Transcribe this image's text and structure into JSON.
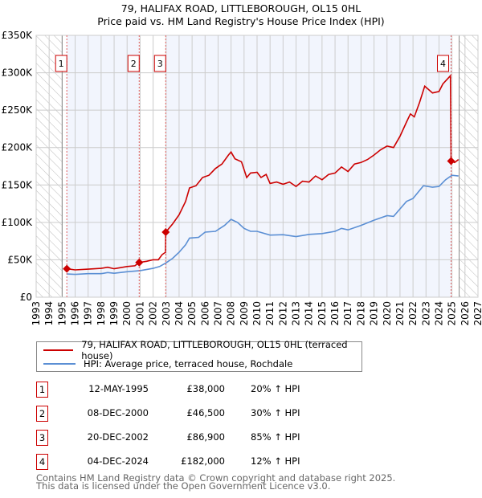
{
  "chart_data": {
    "type": "line",
    "title": "79, HALIFAX ROAD, LITTLEBOROUGH, OL15 0HL",
    "subtitle": "Price paid vs. HM Land Registry's House Price Index (HPI)",
    "xlim": [
      1993,
      2027
    ],
    "ylim": [
      0,
      350000
    ],
    "x_ticks": [
      "1993",
      "1994",
      "1995",
      "1996",
      "1997",
      "1998",
      "1999",
      "2000",
      "2001",
      "2002",
      "2003",
      "2004",
      "2005",
      "2006",
      "2007",
      "2008",
      "2009",
      "2010",
      "2011",
      "2012",
      "2013",
      "2014",
      "2015",
      "2016",
      "2017",
      "2018",
      "2019",
      "2020",
      "2021",
      "2022",
      "2023",
      "2024",
      "2025",
      "2026",
      "2027"
    ],
    "y_ticks": [
      {
        "v": 0,
        "label": "£0"
      },
      {
        "v": 50000,
        "label": "£50K"
      },
      {
        "v": 100000,
        "label": "£100K"
      },
      {
        "v": 150000,
        "label": "£150K"
      },
      {
        "v": 200000,
        "label": "£200K"
      },
      {
        "v": 250000,
        "label": "£250K"
      },
      {
        "v": 300000,
        "label": "£300K"
      },
      {
        "v": 350000,
        "label": "£350K"
      }
    ],
    "grid": true,
    "series": [
      {
        "name": "79, HALIFAX ROAD, LITTLEBOROUGH, OL15 0HL (terraced house)",
        "color": "#cc0000",
        "points": [
          [
            1995.36,
            38000
          ],
          [
            1996,
            36500
          ],
          [
            1997,
            37500
          ],
          [
            1998,
            38500
          ],
          [
            1998.5,
            40000
          ],
          [
            1999,
            38000
          ],
          [
            2000,
            41000
          ],
          [
            2000.6,
            42000
          ],
          [
            2000.93,
            46500
          ],
          [
            2001.5,
            48000
          ],
          [
            2002,
            50000
          ],
          [
            2002.4,
            50000
          ],
          [
            2002.7,
            57000
          ],
          [
            2002.95,
            60000
          ],
          [
            2002.97,
            86900
          ],
          [
            2003.5,
            98000
          ],
          [
            2004,
            110000
          ],
          [
            2004.5,
            128000
          ],
          [
            2004.8,
            146000
          ],
          [
            2005.3,
            149000
          ],
          [
            2005.8,
            160000
          ],
          [
            2006.3,
            163000
          ],
          [
            2006.8,
            172000
          ],
          [
            2007.3,
            178000
          ],
          [
            2007.8,
            190000
          ],
          [
            2008,
            194000
          ],
          [
            2008.3,
            185000
          ],
          [
            2008.8,
            181000
          ],
          [
            2009.2,
            160000
          ],
          [
            2009.5,
            166000
          ],
          [
            2010,
            167000
          ],
          [
            2010.3,
            160000
          ],
          [
            2010.7,
            164000
          ],
          [
            2011,
            152000
          ],
          [
            2011.5,
            154000
          ],
          [
            2012,
            151000
          ],
          [
            2012.5,
            154000
          ],
          [
            2013,
            148000
          ],
          [
            2013.5,
            155000
          ],
          [
            2014,
            154000
          ],
          [
            2014.5,
            162000
          ],
          [
            2015,
            157000
          ],
          [
            2015.5,
            164000
          ],
          [
            2016,
            166000
          ],
          [
            2016.5,
            174000
          ],
          [
            2017,
            168000
          ],
          [
            2017.5,
            178000
          ],
          [
            2018,
            180000
          ],
          [
            2018.5,
            184000
          ],
          [
            2019,
            190000
          ],
          [
            2019.5,
            197000
          ],
          [
            2020,
            202000
          ],
          [
            2020.5,
            200000
          ],
          [
            2021,
            215000
          ],
          [
            2021.5,
            234000
          ],
          [
            2021.8,
            245000
          ],
          [
            2022.1,
            241000
          ],
          [
            2022.5,
            260000
          ],
          [
            2022.9,
            282000
          ],
          [
            2023.5,
            273000
          ],
          [
            2024,
            275000
          ],
          [
            2024.3,
            285000
          ],
          [
            2024.88,
            296000
          ],
          [
            2024.93,
            182000
          ],
          [
            2025.2,
            180000
          ],
          [
            2025.5,
            184000
          ]
        ]
      },
      {
        "name": "HPI: Average price, terraced house, Rochdale",
        "color": "#5b8fd4",
        "points": [
          [
            1995.36,
            31000
          ],
          [
            1996,
            30500
          ],
          [
            1997,
            31500
          ],
          [
            1998,
            31500
          ],
          [
            1998.5,
            33000
          ],
          [
            1999,
            32000
          ],
          [
            2000,
            34000
          ],
          [
            2001,
            35500
          ],
          [
            2002,
            38500
          ],
          [
            2002.5,
            41000
          ],
          [
            2003,
            46000
          ],
          [
            2003.5,
            52000
          ],
          [
            2004,
            60000
          ],
          [
            2004.5,
            70000
          ],
          [
            2004.8,
            79000
          ],
          [
            2005.5,
            80000
          ],
          [
            2006,
            87000
          ],
          [
            2006.8,
            88000
          ],
          [
            2007.5,
            96000
          ],
          [
            2008,
            104000
          ],
          [
            2008.5,
            100000
          ],
          [
            2009,
            92000
          ],
          [
            2009.5,
            88000
          ],
          [
            2010,
            88000
          ],
          [
            2011,
            83000
          ],
          [
            2012,
            83500
          ],
          [
            2013,
            81000
          ],
          [
            2014,
            84000
          ],
          [
            2015,
            85000
          ],
          [
            2016,
            88000
          ],
          [
            2016.5,
            92000
          ],
          [
            2017,
            90000
          ],
          [
            2018,
            96000
          ],
          [
            2019,
            103000
          ],
          [
            2020,
            109000
          ],
          [
            2020.5,
            108000
          ],
          [
            2021,
            118000
          ],
          [
            2021.5,
            128000
          ],
          [
            2022,
            132000
          ],
          [
            2022.8,
            149000
          ],
          [
            2023.5,
            147000
          ],
          [
            2024,
            148000
          ],
          [
            2024.5,
            157000
          ],
          [
            2025,
            163000
          ],
          [
            2025.5,
            162000
          ]
        ]
      }
    ],
    "sales": [
      {
        "n": "1",
        "x": 1995.36,
        "y": 38000
      },
      {
        "n": "2",
        "x": 2000.93,
        "y": 46500
      },
      {
        "n": "3",
        "x": 2002.97,
        "y": 86900
      },
      {
        "n": "4",
        "x": 2024.93,
        "y": 182000
      }
    ],
    "data_start": 1995,
    "data_end": 2025.55,
    "legend_position": "below"
  },
  "legend": [
    {
      "label": "79, HALIFAX ROAD, LITTLEBOROUGH, OL15 0HL (terraced house)",
      "color": "#cc0000"
    },
    {
      "label": "HPI: Average price, terraced house, Rochdale",
      "color": "#5b8fd4"
    }
  ],
  "transactions": [
    {
      "n": "1",
      "date": "12-MAY-1995",
      "price": "£38,000",
      "hpi": "20% ↑ HPI"
    },
    {
      "n": "2",
      "date": "08-DEC-2000",
      "price": "£46,500",
      "hpi": "30% ↑ HPI"
    },
    {
      "n": "3",
      "date": "20-DEC-2002",
      "price": "£86,900",
      "hpi": "85% ↑ HPI"
    },
    {
      "n": "4",
      "date": "04-DEC-2024",
      "price": "£182,000",
      "hpi": "12% ↑ HPI"
    }
  ],
  "footer": {
    "line1": "Contains HM Land Registry data © Crown copyright and database right 2025.",
    "line2": "This data is licensed under the Open Government Licence v3.0."
  }
}
